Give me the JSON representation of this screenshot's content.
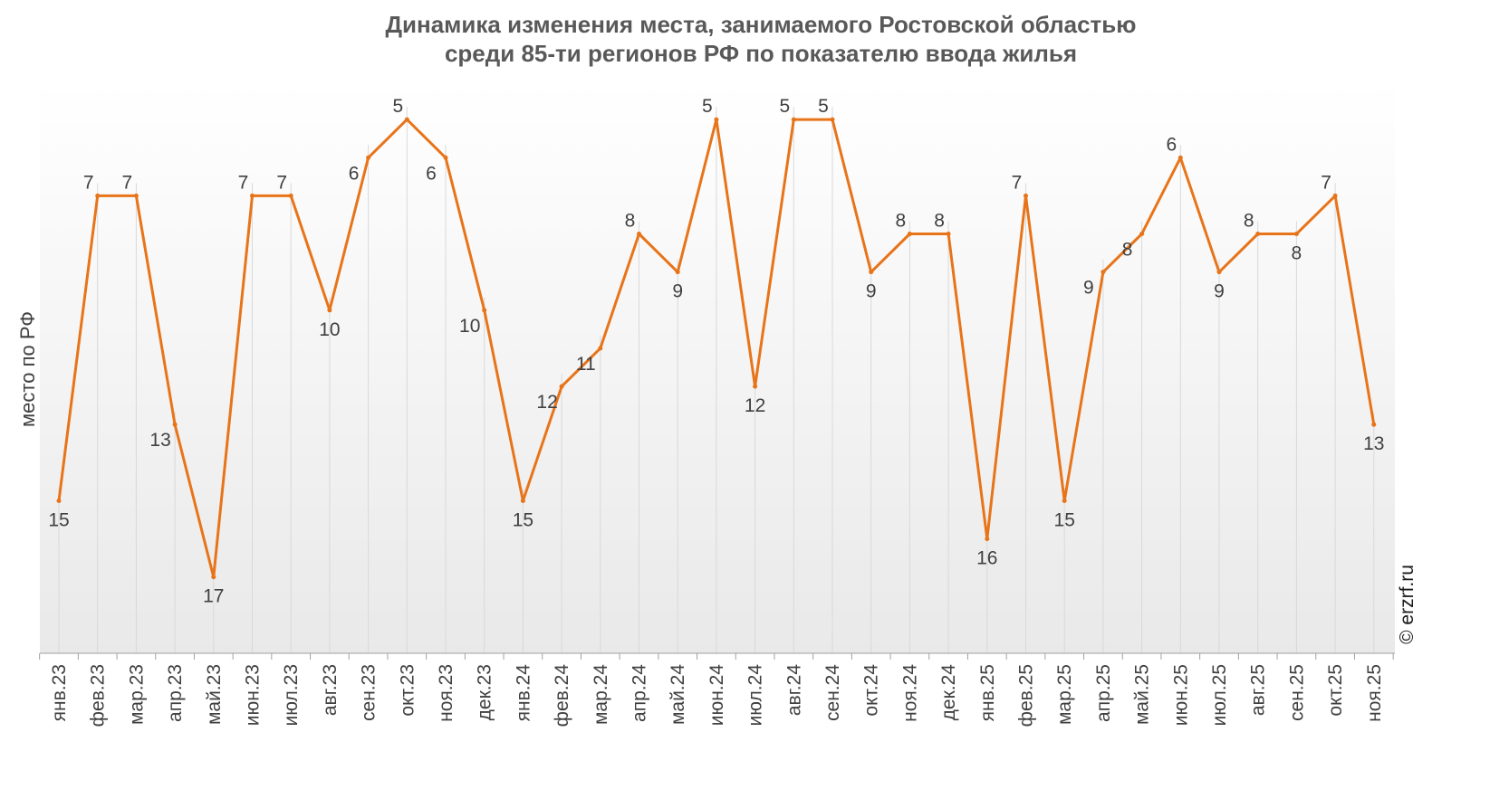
{
  "chart_data": {
    "type": "line",
    "title_lines": [
      "Динамика изменения места, занимаемого Ростовской областью",
      "среди 85-ти регионов РФ по показателю ввода жилья"
    ],
    "xlabel": "",
    "ylabel": "место по РФ",
    "y_reversed": true,
    "ylim": [
      19,
      4
    ],
    "categories": [
      "янв.23",
      "фев.23",
      "мар.23",
      "апр.23",
      "май.23",
      "июн.23",
      "июл.23",
      "авг.23",
      "сен.23",
      "окт.23",
      "ноя.23",
      "дек.23",
      "янв.24",
      "фев.24",
      "мар.24",
      "апр.24",
      "май.24",
      "июн.24",
      "июл.24",
      "авг.24",
      "сен.24",
      "окт.24",
      "ноя.24",
      "дек.24",
      "янв.25",
      "фев.25",
      "мар.25",
      "апр.25",
      "май.25",
      "июн.25",
      "июл.25",
      "авг.25",
      "сен.25",
      "окт.25",
      "ноя.25"
    ],
    "series": [
      {
        "values": [
          15,
          7,
          7,
          13,
          17,
          7,
          7,
          10,
          6,
          5,
          6,
          10,
          15,
          12,
          11,
          8,
          9,
          5,
          12,
          5,
          5,
          9,
          8,
          8,
          16,
          7,
          15,
          9,
          8,
          6,
          9,
          8,
          8,
          7,
          13
        ],
        "color": "#E8741A"
      }
    ],
    "grid": "vertical",
    "background_gradient": [
      "#ffffff",
      "#e9e9e9"
    ]
  },
  "credit": "© erzrf.ru"
}
